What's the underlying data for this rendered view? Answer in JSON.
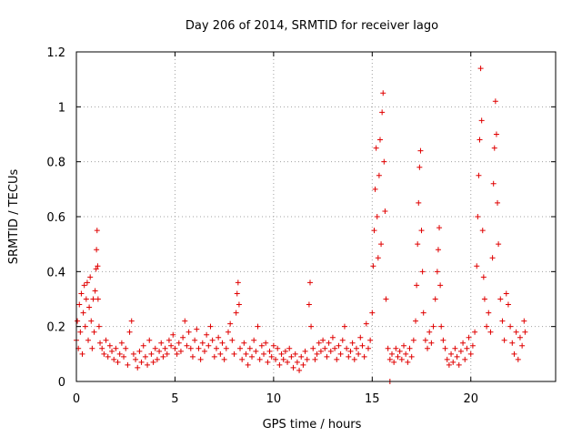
{
  "chart_data": {
    "type": "scatter",
    "title": "Day 206 of 2014, SRMTID for receiver Iago",
    "xlabel": "GPS time / hours",
    "ylabel": "SRMTID / TECUs",
    "xlim": [
      0,
      24.3
    ],
    "ylim": [
      0,
      1.2
    ],
    "xticks": [
      0,
      5,
      10,
      15,
      20
    ],
    "xtick_labels": [
      "0",
      "5",
      "10",
      "15",
      "20"
    ],
    "yticks": [
      0,
      0.2,
      0.4,
      0.6,
      0.8,
      1.0,
      1.2
    ],
    "ytick_labels": [
      "0",
      "0.2",
      "0.4",
      "0.6",
      "0.8",
      "1",
      "1.2"
    ],
    "grid": true,
    "marker": "+",
    "color": "#e00000",
    "series": [
      {
        "name": "SRMTID",
        "points": [
          [
            0.0,
            0.15
          ],
          [
            0.05,
            0.22
          ],
          [
            0.1,
            0.12
          ],
          [
            0.15,
            0.28
          ],
          [
            0.2,
            0.18
          ],
          [
            0.25,
            0.32
          ],
          [
            0.3,
            0.1
          ],
          [
            0.35,
            0.25
          ],
          [
            0.4,
            0.35
          ],
          [
            0.45,
            0.2
          ],
          [
            0.5,
            0.3
          ],
          [
            0.55,
            0.36
          ],
          [
            0.6,
            0.15
          ],
          [
            0.65,
            0.27
          ],
          [
            0.7,
            0.38
          ],
          [
            0.75,
            0.22
          ],
          [
            0.8,
            0.12
          ],
          [
            0.85,
            0.3
          ],
          [
            0.9,
            0.18
          ],
          [
            0.95,
            0.33
          ],
          [
            1.0,
            0.41
          ],
          [
            1.02,
            0.48
          ],
          [
            1.05,
            0.55
          ],
          [
            1.08,
            0.42
          ],
          [
            1.1,
            0.3
          ],
          [
            1.15,
            0.2
          ],
          [
            1.2,
            0.14
          ],
          [
            1.3,
            0.12
          ],
          [
            1.4,
            0.1
          ],
          [
            1.5,
            0.15
          ],
          [
            1.6,
            0.09
          ],
          [
            1.7,
            0.13
          ],
          [
            1.8,
            0.11
          ],
          [
            1.9,
            0.08
          ],
          [
            2.0,
            0.12
          ],
          [
            2.1,
            0.07
          ],
          [
            2.2,
            0.1
          ],
          [
            2.3,
            0.14
          ],
          [
            2.4,
            0.09
          ],
          [
            2.5,
            0.12
          ],
          [
            2.6,
            0.06
          ],
          [
            2.7,
            0.18
          ],
          [
            2.8,
            0.22
          ],
          [
            2.9,
            0.1
          ],
          [
            3.0,
            0.08
          ],
          [
            3.1,
            0.05
          ],
          [
            3.2,
            0.11
          ],
          [
            3.3,
            0.07
          ],
          [
            3.4,
            0.13
          ],
          [
            3.5,
            0.09
          ],
          [
            3.6,
            0.06
          ],
          [
            3.7,
            0.15
          ],
          [
            3.8,
            0.1
          ],
          [
            3.9,
            0.07
          ],
          [
            4.0,
            0.12
          ],
          [
            4.1,
            0.08
          ],
          [
            4.2,
            0.11
          ],
          [
            4.3,
            0.14
          ],
          [
            4.4,
            0.09
          ],
          [
            4.5,
            0.12
          ],
          [
            4.6,
            0.1
          ],
          [
            4.7,
            0.15
          ],
          [
            4.8,
            0.13
          ],
          [
            4.9,
            0.17
          ],
          [
            5.0,
            0.12
          ],
          [
            5.1,
            0.1
          ],
          [
            5.2,
            0.14
          ],
          [
            5.3,
            0.11
          ],
          [
            5.4,
            0.16
          ],
          [
            5.5,
            0.22
          ],
          [
            5.6,
            0.13
          ],
          [
            5.7,
            0.18
          ],
          [
            5.8,
            0.12
          ],
          [
            5.9,
            0.09
          ],
          [
            6.0,
            0.15
          ],
          [
            6.1,
            0.19
          ],
          [
            6.2,
            0.12
          ],
          [
            6.3,
            0.08
          ],
          [
            6.4,
            0.14
          ],
          [
            6.5,
            0.11
          ],
          [
            6.6,
            0.17
          ],
          [
            6.7,
            0.13
          ],
          [
            6.8,
            0.2
          ],
          [
            6.9,
            0.15
          ],
          [
            7.0,
            0.09
          ],
          [
            7.1,
            0.12
          ],
          [
            7.2,
            0.16
          ],
          [
            7.3,
            0.1
          ],
          [
            7.4,
            0.14
          ],
          [
            7.5,
            0.08
          ],
          [
            7.6,
            0.12
          ],
          [
            7.7,
            0.18
          ],
          [
            7.8,
            0.21
          ],
          [
            7.9,
            0.15
          ],
          [
            8.0,
            0.1
          ],
          [
            8.1,
            0.25
          ],
          [
            8.15,
            0.32
          ],
          [
            8.2,
            0.36
          ],
          [
            8.25,
            0.28
          ],
          [
            8.3,
            0.12
          ],
          [
            8.4,
            0.08
          ],
          [
            8.5,
            0.14
          ],
          [
            8.6,
            0.1
          ],
          [
            8.7,
            0.06
          ],
          [
            8.8,
            0.12
          ],
          [
            8.9,
            0.09
          ],
          [
            9.0,
            0.15
          ],
          [
            9.1,
            0.11
          ],
          [
            9.2,
            0.2
          ],
          [
            9.3,
            0.08
          ],
          [
            9.4,
            0.13
          ],
          [
            9.5,
            0.1
          ],
          [
            9.6,
            0.14
          ],
          [
            9.7,
            0.07
          ],
          [
            9.8,
            0.11
          ],
          [
            9.9,
            0.09
          ],
          [
            10.0,
            0.13
          ],
          [
            10.1,
            0.08
          ],
          [
            10.2,
            0.12
          ],
          [
            10.3,
            0.06
          ],
          [
            10.4,
            0.1
          ],
          [
            10.5,
            0.08
          ],
          [
            10.6,
            0.11
          ],
          [
            10.7,
            0.07
          ],
          [
            10.8,
            0.12
          ],
          [
            10.9,
            0.09
          ],
          [
            11.0,
            0.05
          ],
          [
            11.1,
            0.1
          ],
          [
            11.2,
            0.07
          ],
          [
            11.3,
            0.04
          ],
          [
            11.4,
            0.09
          ],
          [
            11.5,
            0.06
          ],
          [
            11.6,
            0.11
          ],
          [
            11.7,
            0.08
          ],
          [
            11.8,
            0.28
          ],
          [
            11.85,
            0.36
          ],
          [
            11.9,
            0.2
          ],
          [
            12.0,
            0.12
          ],
          [
            12.1,
            0.08
          ],
          [
            12.2,
            0.1
          ],
          [
            12.3,
            0.14
          ],
          [
            12.4,
            0.11
          ],
          [
            12.5,
            0.15
          ],
          [
            12.6,
            0.12
          ],
          [
            12.7,
            0.09
          ],
          [
            12.8,
            0.14
          ],
          [
            12.9,
            0.11
          ],
          [
            13.0,
            0.16
          ],
          [
            13.1,
            0.12
          ],
          [
            13.2,
            0.08
          ],
          [
            13.3,
            0.13
          ],
          [
            13.4,
            0.1
          ],
          [
            13.5,
            0.15
          ],
          [
            13.6,
            0.2
          ],
          [
            13.7,
            0.12
          ],
          [
            13.8,
            0.09
          ],
          [
            13.9,
            0.11
          ],
          [
            14.0,
            0.14
          ],
          [
            14.1,
            0.08
          ],
          [
            14.2,
            0.12
          ],
          [
            14.3,
            0.1
          ],
          [
            14.4,
            0.16
          ],
          [
            14.5,
            0.13
          ],
          [
            14.6,
            0.09
          ],
          [
            14.7,
            0.21
          ],
          [
            14.8,
            0.12
          ],
          [
            14.9,
            0.15
          ],
          [
            15.0,
            0.25
          ],
          [
            15.05,
            0.42
          ],
          [
            15.1,
            0.55
          ],
          [
            15.15,
            0.7
          ],
          [
            15.2,
            0.85
          ],
          [
            15.25,
            0.6
          ],
          [
            15.3,
            0.45
          ],
          [
            15.35,
            0.75
          ],
          [
            15.4,
            0.88
          ],
          [
            15.45,
            0.5
          ],
          [
            15.5,
            0.98
          ],
          [
            15.55,
            1.05
          ],
          [
            15.6,
            0.8
          ],
          [
            15.65,
            0.62
          ],
          [
            15.7,
            0.3
          ],
          [
            15.8,
            0.12
          ],
          [
            15.9,
            0.08
          ],
          [
            16.0,
            0.1
          ],
          [
            16.1,
            0.07
          ],
          [
            16.2,
            0.12
          ],
          [
            16.3,
            0.09
          ],
          [
            16.4,
            0.11
          ],
          [
            16.5,
            0.08
          ],
          [
            16.6,
            0.13
          ],
          [
            16.7,
            0.1
          ],
          [
            16.8,
            0.07
          ],
          [
            16.9,
            0.12
          ],
          [
            17.0,
            0.09
          ],
          [
            17.1,
            0.15
          ],
          [
            17.2,
            0.22
          ],
          [
            17.25,
            0.35
          ],
          [
            17.3,
            0.5
          ],
          [
            17.35,
            0.65
          ],
          [
            17.4,
            0.78
          ],
          [
            17.45,
            0.84
          ],
          [
            17.5,
            0.55
          ],
          [
            17.55,
            0.4
          ],
          [
            17.6,
            0.25
          ],
          [
            17.7,
            0.15
          ],
          [
            17.8,
            0.12
          ],
          [
            17.9,
            0.18
          ],
          [
            18.0,
            0.14
          ],
          [
            18.1,
            0.2
          ],
          [
            18.2,
            0.3
          ],
          [
            18.3,
            0.4
          ],
          [
            18.35,
            0.48
          ],
          [
            18.4,
            0.56
          ],
          [
            18.45,
            0.35
          ],
          [
            18.5,
            0.2
          ],
          [
            18.6,
            0.15
          ],
          [
            18.7,
            0.12
          ],
          [
            18.8,
            0.08
          ],
          [
            18.9,
            0.06
          ],
          [
            19.0,
            0.1
          ],
          [
            19.1,
            0.07
          ],
          [
            19.2,
            0.12
          ],
          [
            19.3,
            0.09
          ],
          [
            19.4,
            0.06
          ],
          [
            19.5,
            0.11
          ],
          [
            19.6,
            0.14
          ],
          [
            19.7,
            0.08
          ],
          [
            19.8,
            0.12
          ],
          [
            19.9,
            0.16
          ],
          [
            20.0,
            0.1
          ],
          [
            20.1,
            0.13
          ],
          [
            20.2,
            0.18
          ],
          [
            20.3,
            0.42
          ],
          [
            20.35,
            0.6
          ],
          [
            20.4,
            0.75
          ],
          [
            20.45,
            0.88
          ],
          [
            20.5,
            1.14
          ],
          [
            20.55,
            0.95
          ],
          [
            20.6,
            0.55
          ],
          [
            20.65,
            0.38
          ],
          [
            20.7,
            0.3
          ],
          [
            20.8,
            0.2
          ],
          [
            20.9,
            0.25
          ],
          [
            21.0,
            0.18
          ],
          [
            21.1,
            0.45
          ],
          [
            21.15,
            0.72
          ],
          [
            21.2,
            0.85
          ],
          [
            21.25,
            1.02
          ],
          [
            21.3,
            0.9
          ],
          [
            21.35,
            0.65
          ],
          [
            21.4,
            0.5
          ],
          [
            21.5,
            0.3
          ],
          [
            21.6,
            0.22
          ],
          [
            21.7,
            0.15
          ],
          [
            21.8,
            0.32
          ],
          [
            21.9,
            0.28
          ],
          [
            22.0,
            0.2
          ],
          [
            22.1,
            0.14
          ],
          [
            22.2,
            0.1
          ],
          [
            22.3,
            0.18
          ],
          [
            22.4,
            0.08
          ],
          [
            22.5,
            0.16
          ],
          [
            22.6,
            0.13
          ],
          [
            22.7,
            0.22
          ],
          [
            22.75,
            0.18
          ],
          [
            15.9,
            0.0
          ]
        ]
      }
    ]
  }
}
